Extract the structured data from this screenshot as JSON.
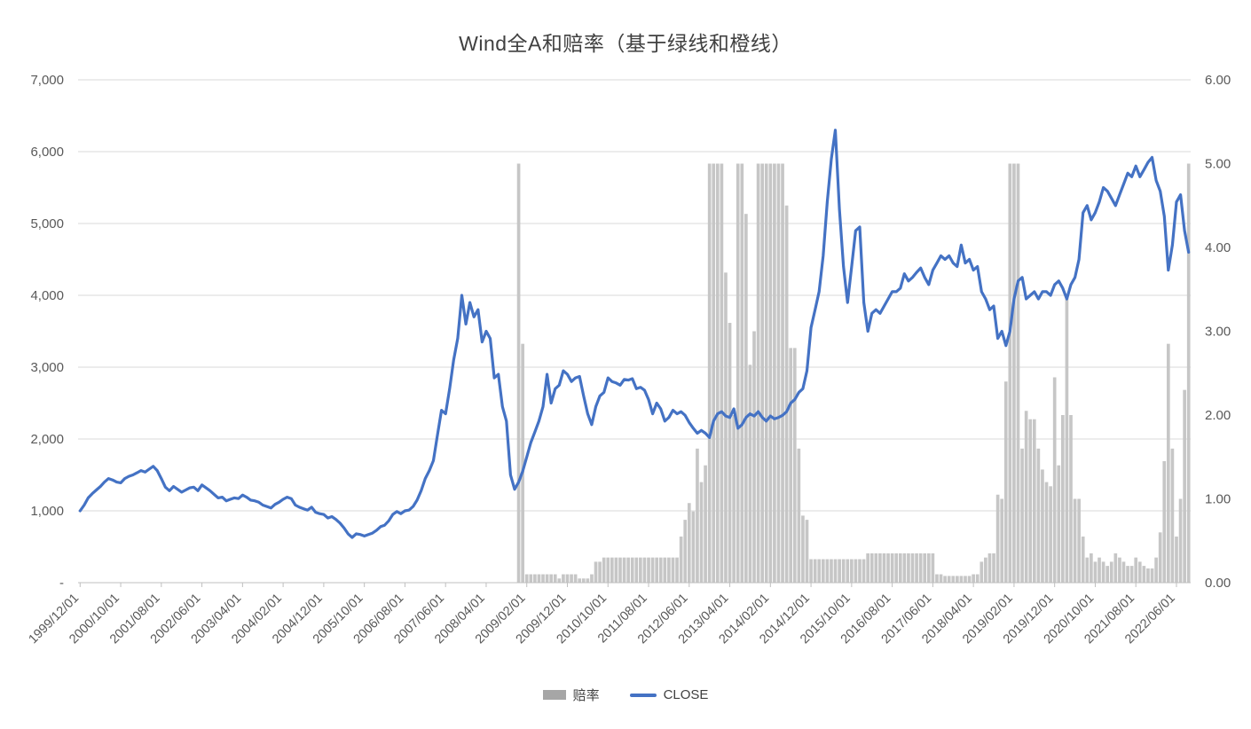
{
  "page": {
    "background": "#FFFFFF"
  },
  "title": "Wind全A和赔率（基于绿线和橙线）",
  "legend": {
    "items": [
      {
        "label": "赔率",
        "type": "bar",
        "color": "#A6A6A6"
      },
      {
        "label": "CLOSE",
        "type": "line",
        "color": "#4472C4"
      }
    ]
  },
  "chart_data": {
    "type": "combo",
    "grid": true,
    "colors": {
      "bar": "#C6C6C6",
      "line": "#4472C4",
      "gridline": "#D9D9D9",
      "axis": "#BFBFBF",
      "tick_text": "#595959"
    },
    "left_axis": {
      "min": 0,
      "max": 7000,
      "tick_step": 1000,
      "tick_labels": [
        "-",
        "1,000",
        "2,000",
        "3,000",
        "4,000",
        "5,000",
        "6,000",
        "7,000"
      ]
    },
    "right_axis": {
      "min": 0,
      "max": 6,
      "tick_step": 1,
      "tick_labels": [
        "0.00",
        "1.00",
        "2.00",
        "3.00",
        "4.00",
        "5.00",
        "6.00"
      ]
    },
    "x_tick_every": 10,
    "x_tick_labels": [
      "1999/12/01",
      "2000/10/01",
      "2001/08/01",
      "2002/06/01",
      "2003/04/01",
      "2004/02/01",
      "2004/12/01",
      "2005/10/01",
      "2006/08/01",
      "2007/06/01",
      "2008/04/01",
      "2009/02/01",
      "2009/12/01",
      "2010/10/01",
      "2011/08/01",
      "2012/06/01",
      "2013/04/01",
      "2014/02/01",
      "2014/12/01",
      "2015/10/01",
      "2016/08/01",
      "2017/06/01",
      "2018/04/01",
      "2019/02/01",
      "2019/12/01",
      "2020/10/01",
      "2021/08/01",
      "2022/06/01"
    ],
    "series": [
      {
        "name": "赔率",
        "type": "bar",
        "axis": "right",
        "color": "#C6C6C6",
        "values": [
          0,
          0,
          0,
          0,
          0,
          0,
          0,
          0,
          0,
          0,
          0,
          0,
          0,
          0,
          0,
          0,
          0,
          0,
          0,
          0,
          0,
          0,
          0,
          0,
          0,
          0,
          0,
          0,
          0,
          0,
          0,
          0,
          0,
          0,
          0,
          0,
          0,
          0,
          0,
          0,
          0,
          0,
          0,
          0,
          0,
          0,
          0,
          0,
          0,
          0,
          0,
          0,
          0,
          0,
          0,
          0,
          0,
          0,
          0,
          0,
          0,
          0,
          0,
          0,
          0,
          0,
          0,
          0,
          0,
          0,
          0,
          0,
          0,
          0,
          0,
          0,
          0,
          0,
          0,
          0,
          0,
          0,
          0,
          0,
          0,
          0,
          0,
          0,
          0,
          0,
          0,
          0,
          0,
          0,
          0,
          0,
          0,
          0,
          0,
          0,
          0,
          0,
          0,
          0,
          0,
          0,
          0,
          0,
          5,
          2.85,
          0.1,
          0.1,
          0.1,
          0.1,
          0.1,
          0.1,
          0.1,
          0.1,
          0.05,
          0.1,
          0.1,
          0.1,
          0.1,
          0.05,
          0.05,
          0.05,
          0.1,
          0.25,
          0.25,
          0.3,
          0.3,
          0.3,
          0.3,
          0.3,
          0.3,
          0.3,
          0.3,
          0.3,
          0.3,
          0.3,
          0.3,
          0.3,
          0.3,
          0.3,
          0.3,
          0.3,
          0.3,
          0.3,
          0.55,
          0.75,
          0.95,
          0.85,
          1.6,
          1.2,
          1.4,
          5,
          5,
          5,
          5,
          3.7,
          3.1,
          2,
          5,
          5,
          4.4,
          2.6,
          3,
          5,
          5,
          5,
          5,
          5,
          5,
          5,
          4.5,
          2.8,
          2.8,
          1.6,
          0.8,
          0.75,
          0.28,
          0.28,
          0.28,
          0.28,
          0.28,
          0.28,
          0.28,
          0.28,
          0.28,
          0.28,
          0.28,
          0.28,
          0.28,
          0.28,
          0.35,
          0.35,
          0.35,
          0.35,
          0.35,
          0.35,
          0.35,
          0.35,
          0.35,
          0.35,
          0.35,
          0.35,
          0.35,
          0.35,
          0.35,
          0.35,
          0.35,
          0.1,
          0.1,
          0.08,
          0.08,
          0.08,
          0.08,
          0.08,
          0.08,
          0.08,
          0.1,
          0.1,
          0.25,
          0.3,
          0.35,
          0.35,
          1.05,
          1,
          2.4,
          5,
          5,
          5,
          1.6,
          2.05,
          1.95,
          1.95,
          1.6,
          1.35,
          1.2,
          1.15,
          2.45,
          1.4,
          2,
          3.4,
          2,
          1,
          1,
          0.55,
          0.3,
          0.35,
          0.25,
          0.3,
          0.25,
          0.2,
          0.25,
          0.35,
          0.3,
          0.25,
          0.2,
          0.2,
          0.3,
          0.25,
          0.2,
          0.17,
          0.17,
          0.3,
          0.6,
          1.45,
          2.85,
          1.6,
          0.55,
          1,
          2.3,
          5
        ]
      },
      {
        "name": "CLOSE",
        "type": "line",
        "axis": "left",
        "color": "#4472C4",
        "values": [
          1000,
          1080,
          1180,
          1240,
          1290,
          1340,
          1400,
          1450,
          1430,
          1400,
          1390,
          1450,
          1480,
          1500,
          1530,
          1560,
          1540,
          1580,
          1620,
          1560,
          1450,
          1330,
          1280,
          1340,
          1300,
          1260,
          1290,
          1320,
          1330,
          1280,
          1360,
          1320,
          1280,
          1230,
          1180,
          1190,
          1140,
          1160,
          1180,
          1170,
          1220,
          1190,
          1150,
          1140,
          1120,
          1080,
          1060,
          1040,
          1090,
          1120,
          1160,
          1190,
          1170,
          1080,
          1050,
          1030,
          1010,
          1050,
          980,
          960,
          950,
          900,
          920,
          880,
          830,
          760,
          680,
          630,
          680,
          670,
          650,
          670,
          690,
          730,
          780,
          800,
          860,
          950,
          990,
          960,
          1000,
          1010,
          1060,
          1150,
          1280,
          1450,
          1560,
          1700,
          2050,
          2400,
          2350,
          2700,
          3100,
          3400,
          4000,
          3600,
          3900,
          3700,
          3800,
          3350,
          3500,
          3400,
          2850,
          2900,
          2450,
          2250,
          1500,
          1300,
          1400,
          1550,
          1750,
          1950,
          2100,
          2250,
          2450,
          2900,
          2500,
          2700,
          2750,
          2950,
          2900,
          2800,
          2850,
          2870,
          2600,
          2350,
          2200,
          2450,
          2600,
          2650,
          2850,
          2800,
          2780,
          2750,
          2830,
          2820,
          2840,
          2700,
          2720,
          2680,
          2550,
          2350,
          2500,
          2420,
          2250,
          2300,
          2400,
          2350,
          2380,
          2330,
          2230,
          2150,
          2080,
          2120,
          2080,
          2020,
          2250,
          2350,
          2380,
          2320,
          2300,
          2420,
          2150,
          2200,
          2300,
          2350,
          2320,
          2380,
          2300,
          2250,
          2320,
          2280,
          2300,
          2330,
          2380,
          2500,
          2550,
          2650,
          2700,
          2950,
          3550,
          3800,
          4050,
          4550,
          5300,
          5900,
          6300,
          5200,
          4400,
          3900,
          4400,
          4900,
          4950,
          3900,
          3500,
          3750,
          3800,
          3750,
          3850,
          3950,
          4050,
          4050,
          4100,
          4300,
          4200,
          4250,
          4320,
          4380,
          4250,
          4150,
          4350,
          4450,
          4550,
          4500,
          4550,
          4450,
          4400,
          4700,
          4450,
          4500,
          4350,
          4400,
          4050,
          3950,
          3800,
          3850,
          3400,
          3500,
          3300,
          3500,
          3950,
          4200,
          4250,
          3950,
          4000,
          4050,
          3950,
          4050,
          4050,
          4000,
          4150,
          4200,
          4100,
          3950,
          4150,
          4250,
          4500,
          5150,
          5250,
          5050,
          5150,
          5300,
          5500,
          5450,
          5350,
          5250,
          5400,
          5550,
          5700,
          5650,
          5800,
          5650,
          5750,
          5850,
          5920,
          5600,
          5450,
          5100,
          4350,
          4700,
          5300,
          5400,
          4900,
          4600
        ]
      }
    ]
  }
}
